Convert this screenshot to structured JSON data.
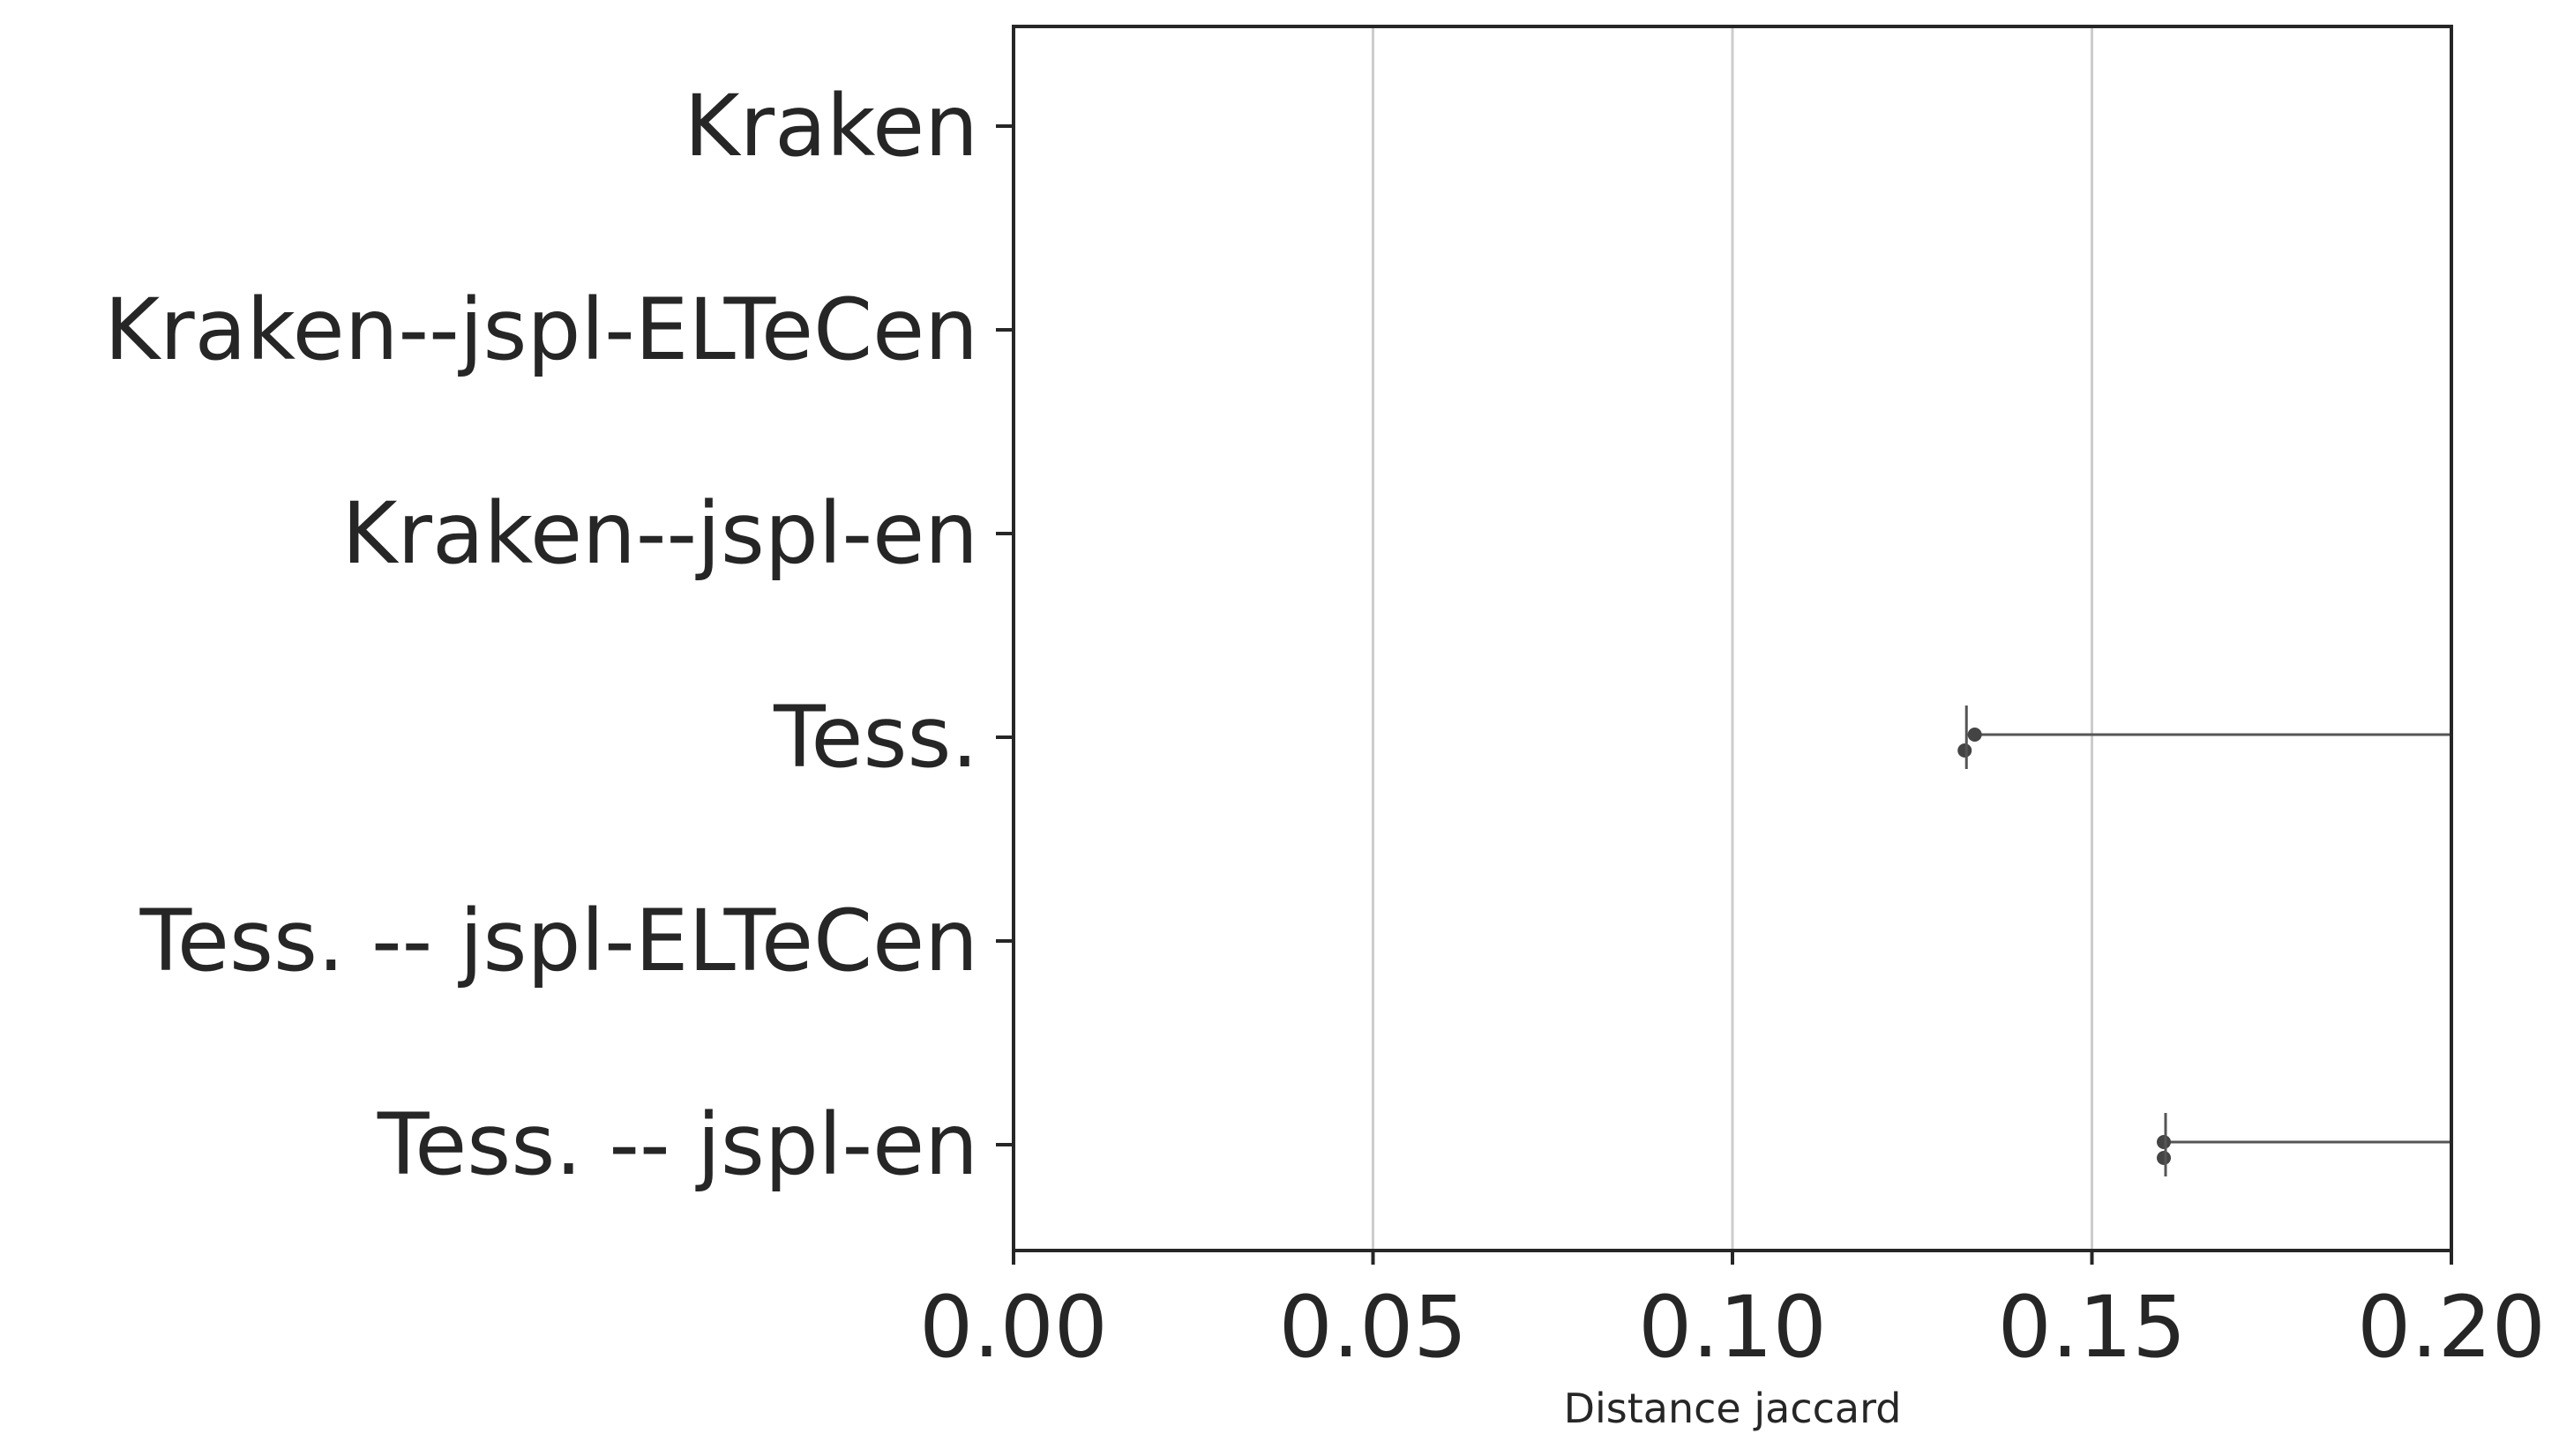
{
  "chart_data": {
    "type": "scatter",
    "title": "",
    "xlabel": "Distance jaccard",
    "ylabel": "",
    "xlim": [
      0.0,
      0.2
    ],
    "grid": "vertical",
    "categories": [
      "Kraken",
      "Kraken--jspl-ELTeCen",
      "Kraken--jspl-en",
      "Tess.",
      "Tess. -- jspl-ELTeCen",
      "Tess. -- jspl-en"
    ],
    "x_ticks": [
      "0.00",
      "0.05",
      "0.10",
      "0.15",
      "0.20"
    ],
    "x_tick_values": [
      0.0,
      0.05,
      0.1,
      0.15,
      0.2
    ],
    "points": [
      {
        "category": "Tess.",
        "offset": "upper",
        "x": 0.1337,
        "err_low": 0.1324,
        "err_high": 0.2
      },
      {
        "category": "Tess.",
        "offset": "lower",
        "x": 0.1323,
        "err_low": 0.1323,
        "err_high": 0.1323
      },
      {
        "category": "Tess. -- jspl-en",
        "offset": "upper",
        "x": 0.16,
        "err_low": 0.16,
        "err_high": 0.2
      },
      {
        "category": "Tess. -- jspl-en",
        "offset": "lower",
        "x": 0.16,
        "err_low": 0.16,
        "err_high": 0.16
      }
    ],
    "colors": {
      "axis": "#262626",
      "grid": "#cccccc",
      "marker": "#444444",
      "errorbar": "#555555"
    }
  }
}
